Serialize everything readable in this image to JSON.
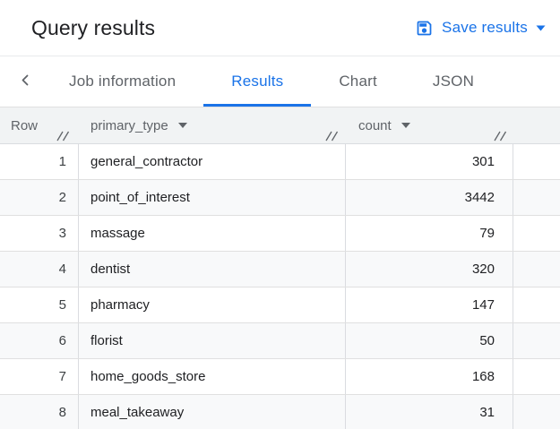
{
  "header": {
    "title": "Query results",
    "save_button": {
      "label": "Save results",
      "icon": "save-icon",
      "caret": "caret-down-icon"
    }
  },
  "tabs": {
    "back_icon": "chevron-left-icon",
    "items": [
      {
        "label": "Job information",
        "active": false
      },
      {
        "label": "Results",
        "active": true
      },
      {
        "label": "Chart",
        "active": false
      },
      {
        "label": "JSON",
        "active": false
      }
    ]
  },
  "table": {
    "columns": [
      {
        "label": "Row",
        "sortable": false
      },
      {
        "label": "primary_type",
        "sortable": true,
        "sort_icon": "caret-down-icon"
      },
      {
        "label": "count",
        "sortable": true,
        "sort_icon": "caret-down-icon"
      }
    ],
    "resize_handle_icon": "column-resize-handle-icon",
    "rows": [
      {
        "row": "1",
        "primary_type": "general_contractor",
        "count": "301"
      },
      {
        "row": "2",
        "primary_type": "point_of_interest",
        "count": "3442"
      },
      {
        "row": "3",
        "primary_type": "massage",
        "count": "79"
      },
      {
        "row": "4",
        "primary_type": "dentist",
        "count": "320"
      },
      {
        "row": "5",
        "primary_type": "pharmacy",
        "count": "147"
      },
      {
        "row": "6",
        "primary_type": "florist",
        "count": "50"
      },
      {
        "row": "7",
        "primary_type": "home_goods_store",
        "count": "168"
      },
      {
        "row": "8",
        "primary_type": "meal_takeaway",
        "count": "31"
      }
    ]
  },
  "colors": {
    "accent_blue": "#1a73e8",
    "header_bg": "#f1f3f4",
    "alt_row_bg": "#f8f9fa",
    "border": "#dadce0",
    "text_primary": "#202124",
    "text_secondary": "#5f6368"
  }
}
